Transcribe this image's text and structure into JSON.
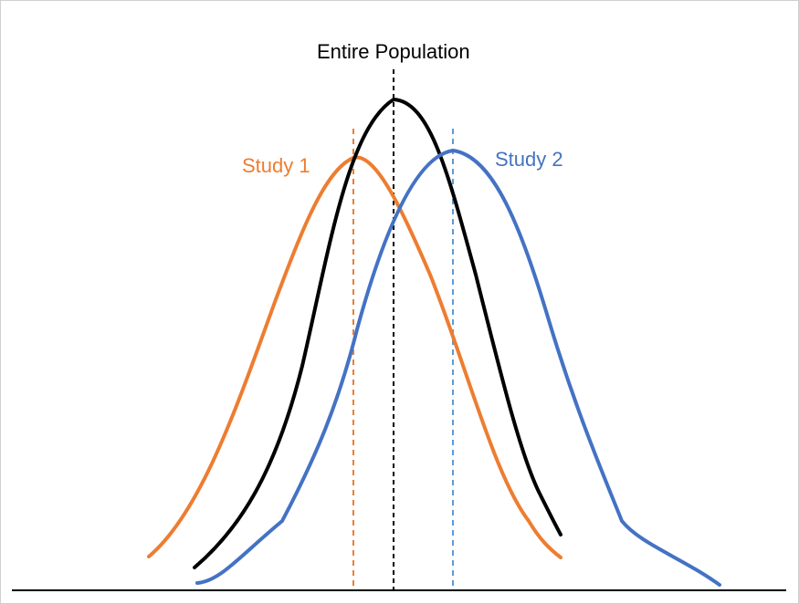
{
  "labels": {
    "population": "Entire Population",
    "study1": "Study 1",
    "study2": "Study 2"
  },
  "colors": {
    "population": "#000000",
    "study1": "#ED7D31",
    "study2": "#4472C4",
    "study1_mean_line": "#ED7D31",
    "study2_mean_line": "#5B9BD5",
    "axis": "#000000"
  },
  "curves": {
    "population": {
      "mean": 0,
      "sd": 1
    },
    "study1": {
      "mean": -0.6,
      "sd": 1.2
    },
    "study2": {
      "mean": 0.9,
      "sd": 1.25
    }
  },
  "line_style": "dashed"
}
